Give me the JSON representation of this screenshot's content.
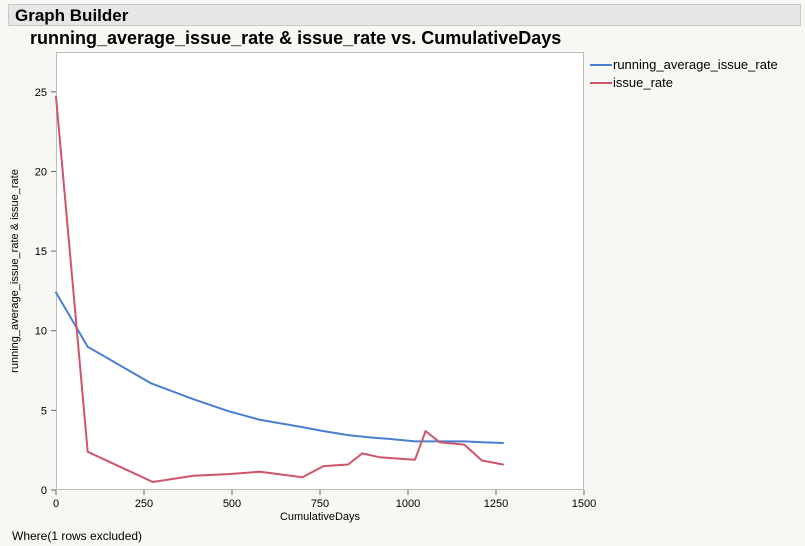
{
  "header": {
    "title": "Graph Builder"
  },
  "footer": {
    "note": "Where(1 rows excluded)"
  },
  "chart_data": {
    "type": "line",
    "title": "running_average_issue_rate & issue_rate vs. CumulativeDays",
    "xlabel": "CumulativeDays",
    "ylabel": "running_average_issue_rate & issue_rate",
    "xlim": [
      0,
      1500
    ],
    "ylim": [
      0,
      27.5
    ],
    "xticks": [
      0,
      250,
      500,
      750,
      1000,
      1250,
      1500
    ],
    "yticks": [
      0,
      5,
      10,
      15,
      20,
      25
    ],
    "grid": false,
    "legend_position": "right",
    "series": [
      {
        "name": "running_average_issue_rate",
        "color": "#4a7fd0",
        "x": [
          0,
          90,
          270,
          390,
          490,
          580,
          700,
          760,
          830,
          890,
          950,
          1020,
          1060,
          1090,
          1160,
          1210,
          1270
        ],
        "y": [
          12.4,
          9.0,
          6.7,
          5.7,
          4.95,
          4.4,
          3.95,
          3.7,
          3.45,
          3.3,
          3.2,
          3.05,
          3.05,
          3.05,
          3.05,
          3.0,
          2.95
        ]
      },
      {
        "name": "issue_rate",
        "color": "#d0556a",
        "x": [
          0,
          90,
          275,
          390,
          490,
          580,
          700,
          760,
          830,
          870,
          920,
          1020,
          1050,
          1090,
          1160,
          1210,
          1270
        ],
        "y": [
          24.7,
          2.4,
          0.5,
          0.9,
          1.0,
          1.15,
          0.8,
          1.5,
          1.6,
          2.3,
          2.05,
          1.9,
          3.7,
          3.0,
          2.85,
          1.85,
          1.6
        ]
      }
    ]
  }
}
